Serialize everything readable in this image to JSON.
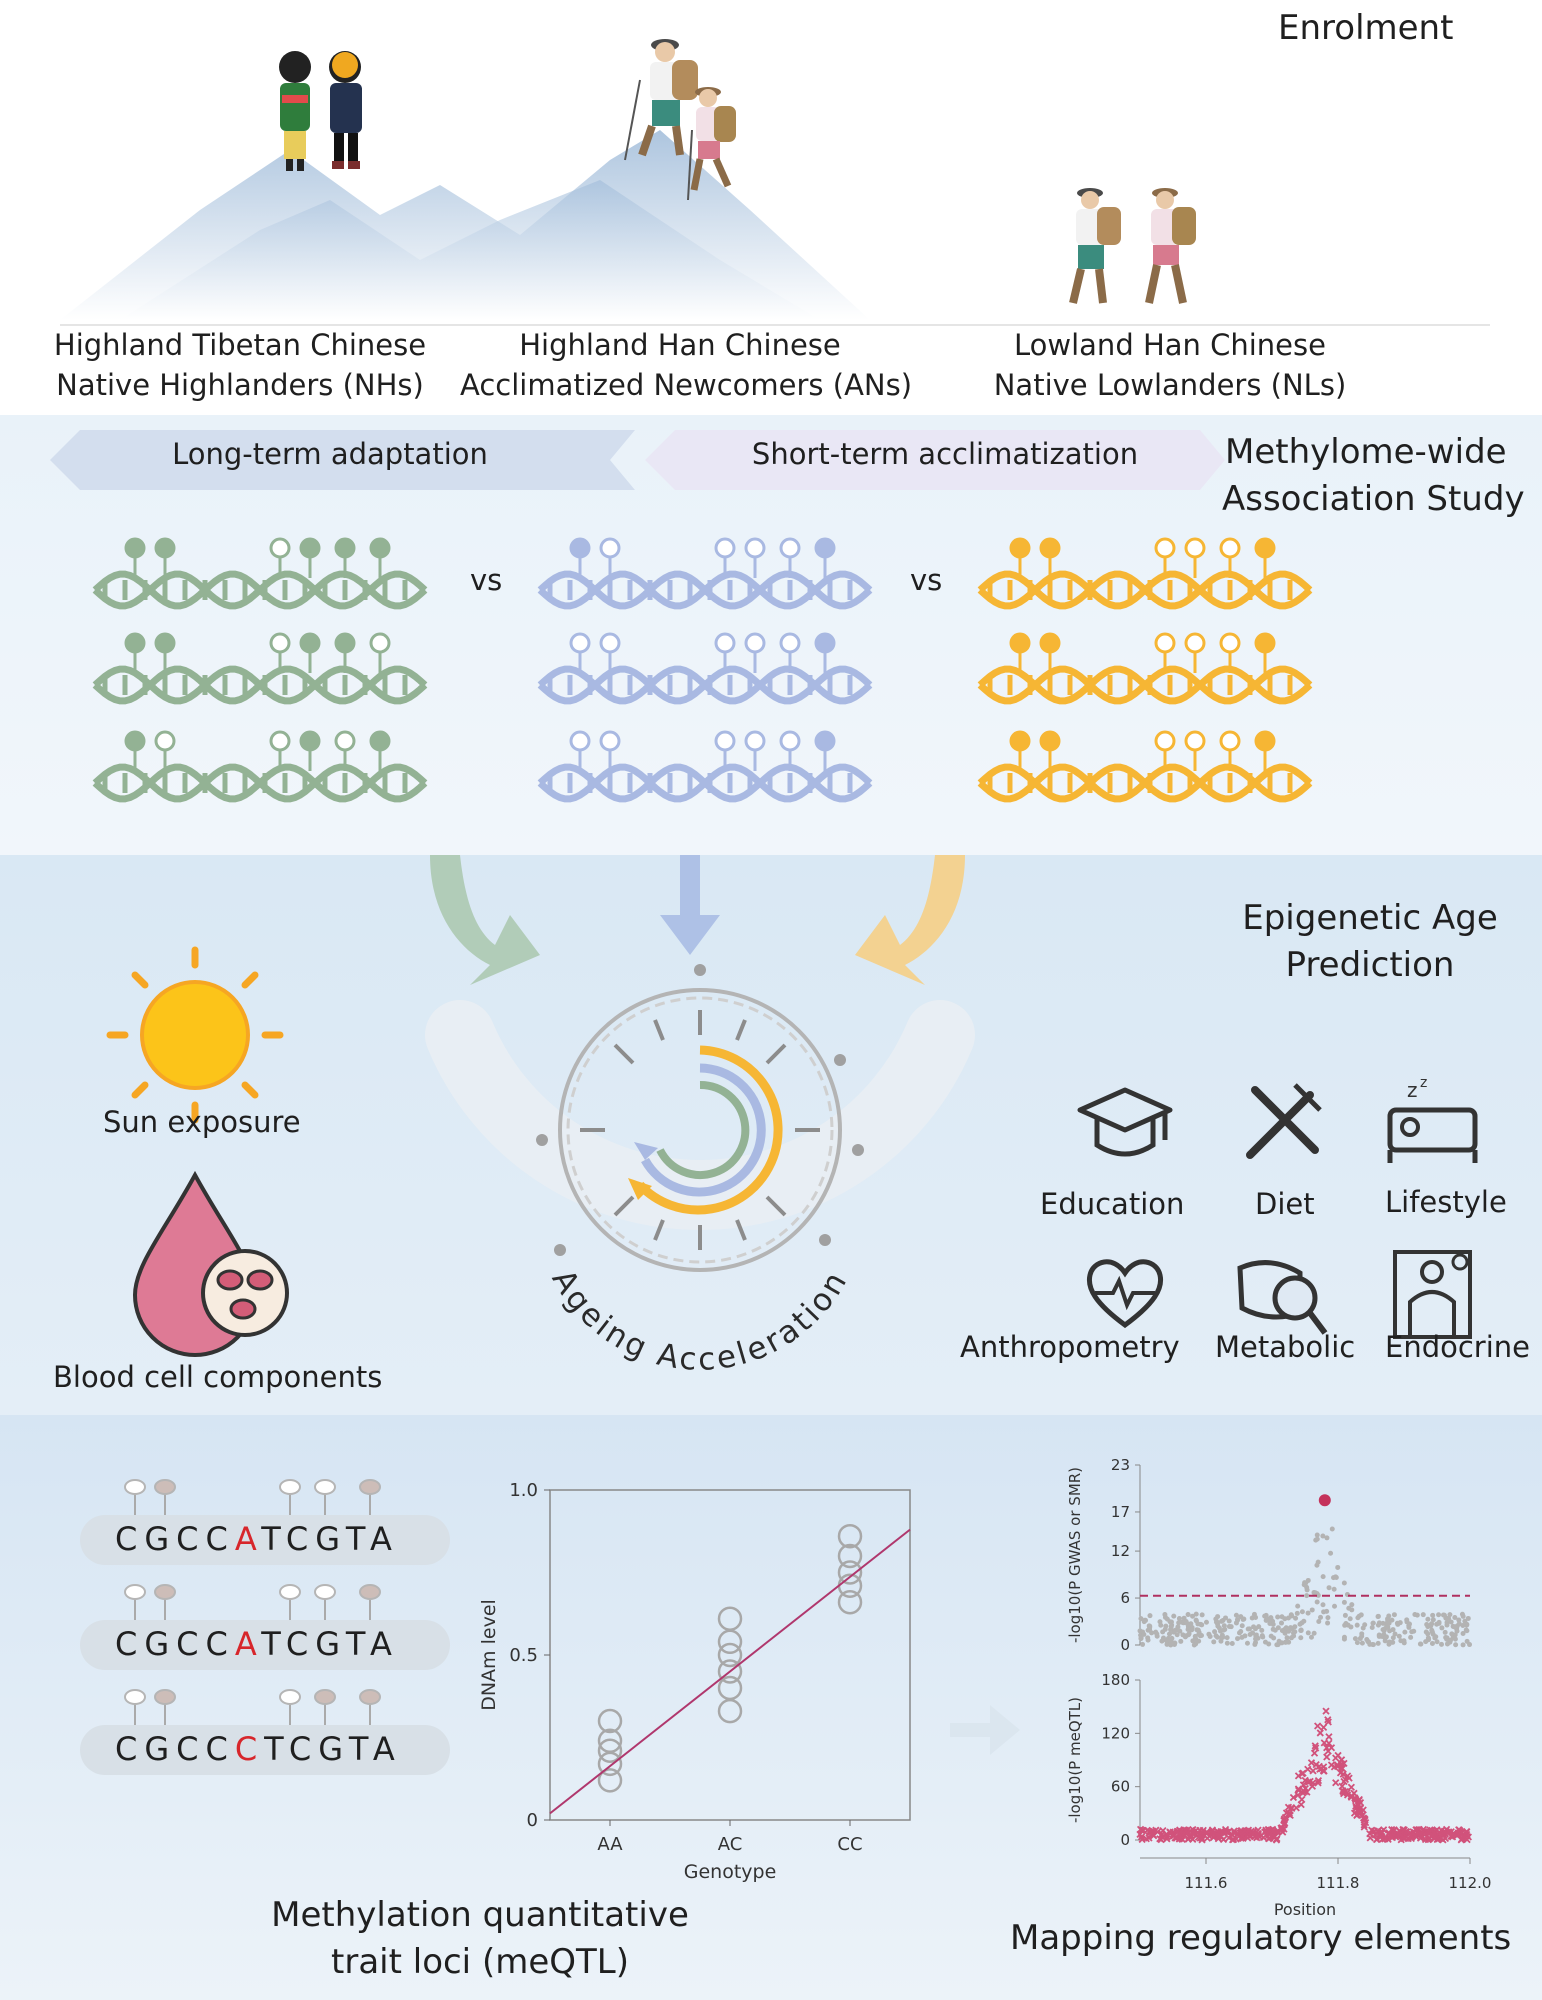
{
  "enrolment": {
    "title": "Enrolment",
    "groups": [
      {
        "line1": "Highland Tibetan Chinese",
        "line2": "Native Highlanders (NHs)"
      },
      {
        "line1": "Highland Han Chinese",
        "line2": "Acclimatized Newcomers (ANs)"
      },
      {
        "line1": "Lowland Han Chinese",
        "line2": "Native Lowlanders (NLs)"
      }
    ]
  },
  "mwas": {
    "title_line1": "Methylome-wide",
    "title_line2": "Association Study",
    "arrow_left": "Long-term adaptation",
    "arrow_right": "Short-term acclimatization",
    "vs": "vs",
    "colors": {
      "green": "#93b294",
      "blue": "#a9b9e2",
      "orange": "#f6b634"
    }
  },
  "epigenetic": {
    "title_line1": "Epigenetic Age",
    "title_line2": "Prediction",
    "sun_label": "Sun exposure",
    "blood_label": "Blood cell components",
    "clock_label": "Ageing Acceleration",
    "factors": [
      "Education",
      "Diet",
      "Lifestyle",
      "Anthropometry",
      "Metabolic",
      "Endocrine"
    ]
  },
  "meqtl": {
    "title_line1": "Methylation quantitative",
    "title_line2": "trait loci (meQTL)",
    "sequences": [
      {
        "pre": "CGCC",
        "snp": "A",
        "post": "TCGTA"
      },
      {
        "pre": "CGCC",
        "snp": "A",
        "post": "TCGTA"
      },
      {
        "pre": "CGCC",
        "snp": "C",
        "post": "TCGTA"
      }
    ],
    "snp_color": "#d7262b"
  },
  "mapping": {
    "title": "Mapping regulatory elements"
  },
  "chart_data": [
    {
      "type": "scatter",
      "title": "",
      "xlabel": "Genotype",
      "ylabel": "DNAm level",
      "categories": [
        "AA",
        "AC",
        "CC"
      ],
      "yticks": [
        "0",
        "0.5",
        "1.0"
      ],
      "ylim": [
        0,
        1.0
      ],
      "points": {
        "AA": [
          0.12,
          0.17,
          0.21,
          0.24,
          0.3
        ],
        "AC": [
          0.33,
          0.4,
          0.45,
          0.5,
          0.54,
          0.61
        ],
        "CC": [
          0.66,
          0.71,
          0.75,
          0.8,
          0.86
        ]
      },
      "fit_line": {
        "y_at_left": 0.02,
        "y_at_right": 0.88
      },
      "line_color": "#b0376d",
      "marker_color": "#a8a8a8"
    },
    {
      "type": "scatter",
      "title": "",
      "xlabel": "",
      "ylabel": "-log10(P GWAS or SMR)",
      "yticks": [
        "0",
        "6",
        "12",
        "17",
        "23"
      ],
      "ylim": [
        0,
        23
      ],
      "xlim": [
        111.5,
        112.0
      ],
      "threshold": 6.3,
      "peak": {
        "x": 111.78,
        "y": 18.5
      },
      "marker_color": "#b3b3b3",
      "highlight_color": "#c4325b"
    },
    {
      "type": "scatter",
      "title": "",
      "xlabel": "Position",
      "ylabel": "-log10(P meQTL)",
      "yticks": [
        "0",
        "60",
        "120",
        "180"
      ],
      "xticks": [
        "111.6",
        "111.8",
        "112.0"
      ],
      "ylim": [
        0,
        180
      ],
      "xlim": [
        111.5,
        112.0
      ],
      "peak": {
        "x": 111.78,
        "y": 145
      },
      "marker_color": "#d1527b"
    }
  ]
}
